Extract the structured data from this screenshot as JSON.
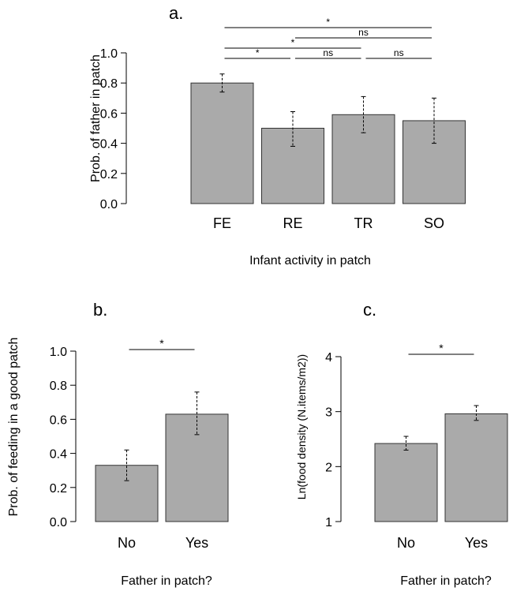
{
  "chart_data": [
    {
      "type": "bar",
      "panel_label": "a.",
      "categories": [
        "FE",
        "RE",
        "TR",
        "SO"
      ],
      "values": [
        0.8,
        0.5,
        0.59,
        0.55
      ],
      "error_low": [
        0.74,
        0.38,
        0.47,
        0.4
      ],
      "error_high": [
        0.86,
        0.61,
        0.71,
        0.7
      ],
      "xlabel": "Infant activity in patch",
      "ylabel": "Prob. of father in patch",
      "ylim": [
        0,
        1
      ],
      "yticks": [
        "0.0",
        "0.2",
        "0.4",
        "0.6",
        "0.8",
        "1.0"
      ],
      "significance": [
        {
          "from": 0,
          "to": 3,
          "label": "*",
          "level": 0
        },
        {
          "from": 1,
          "to": 3,
          "label": "ns",
          "level": 1
        },
        {
          "from": 0,
          "to": 2,
          "label": "*",
          "level": 2
        },
        {
          "from": 0,
          "to": 1,
          "label": "*",
          "level": 3
        },
        {
          "from": 1,
          "to": 2,
          "label": "ns",
          "level": 3
        },
        {
          "from": 2,
          "to": 3,
          "label": "ns",
          "level": 3
        }
      ]
    },
    {
      "type": "bar",
      "panel_label": "b.",
      "categories": [
        "No",
        "Yes"
      ],
      "values": [
        0.33,
        0.63
      ],
      "error_low": [
        0.24,
        0.51
      ],
      "error_high": [
        0.42,
        0.76
      ],
      "xlabel": "Father in patch?",
      "ylabel": "Prob. of feeding in a good patch",
      "ylim": [
        0,
        1
      ],
      "yticks": [
        "0.0",
        "0.2",
        "0.4",
        "0.6",
        "0.8",
        "1.0"
      ],
      "significance": [
        {
          "from": 0,
          "to": 1,
          "label": "*",
          "level": 0
        }
      ]
    },
    {
      "type": "bar",
      "panel_label": "c.",
      "categories": [
        "No",
        "Yes"
      ],
      "values": [
        2.42,
        2.96
      ],
      "error_low": [
        2.3,
        2.84
      ],
      "error_high": [
        2.55,
        3.11
      ],
      "xlabel": "Father in patch?",
      "ylabel": "Ln(food density (N.items/m2))",
      "ylim": [
        1,
        4
      ],
      "yticks": [
        "1",
        "2",
        "3",
        "4"
      ],
      "significance": [
        {
          "from": 0,
          "to": 1,
          "label": "*",
          "level": 0
        }
      ]
    }
  ]
}
